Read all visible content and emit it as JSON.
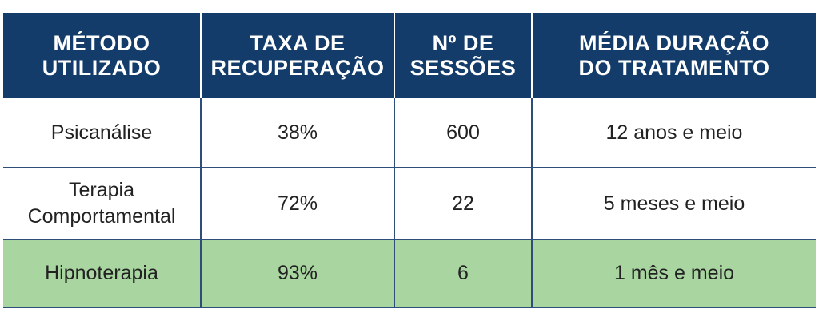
{
  "headers": [
    {
      "line1": "MÉTODO",
      "line2": "UTILIZADO"
    },
    {
      "line1": "TAXA DE",
      "line2": "RECUPERAÇÃO"
    },
    {
      "line1": "Nº DE",
      "line2": "SESSÕES"
    },
    {
      "line1": "MÉDIA DURAÇÃO",
      "line2": "DO TRATAMENTO"
    }
  ],
  "rows": [
    {
      "method_line1": "Psicanálise",
      "method_line2": "",
      "rate": "38%",
      "sessions": "600",
      "duration": "12 anos e meio"
    },
    {
      "method_line1": "Terapia",
      "method_line2": "Comportamental",
      "rate": "72%",
      "sessions": "22",
      "duration": "5 meses e meio"
    },
    {
      "method_line1": "Hipnoterapia",
      "method_line2": "",
      "rate": "93%",
      "sessions": "6",
      "duration": "1 mês e meio"
    }
  ],
  "colors": {
    "header_bg": "#143c6a",
    "highlight_row_bg": "#a8d5a0",
    "grid_line": "#2c4e78"
  }
}
